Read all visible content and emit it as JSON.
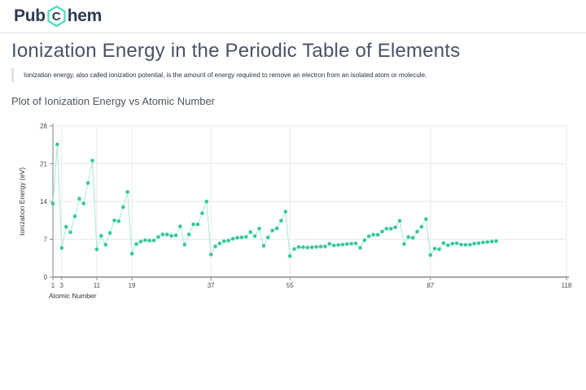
{
  "header": {
    "logo_pub": "Pub",
    "logo_c": "C",
    "logo_hem": "hem"
  },
  "page": {
    "title": "Ionization Energy in the Periodic Table of Elements",
    "description": "Ionization energy, also called ionization potential, is the amount of energy required to remove an electron from an isolated atom or molecule.",
    "section_heading": "Plot of Ionization Energy vs Atomic Number"
  },
  "colors": {
    "logo_text": "#2e3b52",
    "logo_hexagon": "#4adec0",
    "title_text": "#4a5266",
    "marker": "#36c89e",
    "series_line": "#a9e8d3",
    "grid": "#e9eaec",
    "axis": "#8c8c8c",
    "tick_label": "#4a4a4a",
    "axis_title": "#333333"
  },
  "chart_data": {
    "type": "line",
    "title": "Plot of Ionization Energy vs Atomic Number",
    "xlabel": "Atomic Number",
    "ylabel": "Ionization Energy (eV)",
    "xlim": [
      1,
      118
    ],
    "ylim": [
      0,
      28
    ],
    "x_ticks": [
      1,
      3,
      11,
      19,
      37,
      55,
      87,
      118
    ],
    "y_ticks": [
      0,
      7,
      14,
      21,
      28
    ],
    "grid": true,
    "legend": false,
    "x": [
      1,
      2,
      3,
      4,
      5,
      6,
      7,
      8,
      9,
      10,
      11,
      12,
      13,
      14,
      15,
      16,
      17,
      18,
      19,
      20,
      21,
      22,
      23,
      24,
      25,
      26,
      27,
      28,
      29,
      30,
      31,
      32,
      33,
      34,
      35,
      36,
      37,
      38,
      39,
      40,
      41,
      42,
      43,
      44,
      45,
      46,
      47,
      48,
      49,
      50,
      51,
      52,
      53,
      54,
      55,
      56,
      57,
      58,
      59,
      60,
      61,
      62,
      63,
      64,
      65,
      66,
      67,
      68,
      69,
      70,
      71,
      72,
      73,
      74,
      75,
      76,
      77,
      78,
      79,
      80,
      81,
      82,
      83,
      84,
      85,
      86,
      87,
      88,
      89,
      90,
      91,
      92,
      93,
      94,
      95,
      96,
      97,
      98,
      99,
      100,
      101,
      102
    ],
    "values": [
      13.598,
      24.587,
      5.392,
      9.323,
      8.298,
      11.26,
      14.534,
      13.618,
      17.423,
      21.565,
      5.139,
      7.646,
      5.986,
      8.152,
      10.487,
      10.36,
      12.968,
      15.76,
      4.341,
      6.113,
      6.561,
      6.828,
      6.746,
      6.767,
      7.434,
      7.902,
      7.881,
      7.64,
      7.726,
      9.394,
      5.999,
      7.899,
      9.789,
      9.752,
      11.814,
      14.0,
      4.177,
      5.695,
      6.217,
      6.634,
      6.759,
      7.092,
      7.28,
      7.361,
      7.459,
      8.337,
      7.576,
      8.994,
      5.786,
      7.344,
      8.608,
      9.01,
      10.451,
      12.13,
      3.894,
      5.212,
      5.577,
      5.539,
      5.473,
      5.525,
      5.582,
      5.644,
      5.67,
      6.15,
      5.864,
      5.939,
      6.022,
      6.108,
      6.184,
      6.254,
      5.426,
      6.825,
      7.55,
      7.864,
      7.834,
      8.438,
      8.967,
      8.959,
      9.226,
      10.437,
      6.108,
      7.417,
      7.286,
      8.414,
      9.318,
      10.748,
      4.073,
      5.278,
      5.17,
      6.307,
      5.89,
      6.194,
      6.266,
      6.026,
      5.974,
      5.991,
      6.198,
      6.282,
      6.42,
      6.5,
      6.58,
      6.66
    ]
  }
}
